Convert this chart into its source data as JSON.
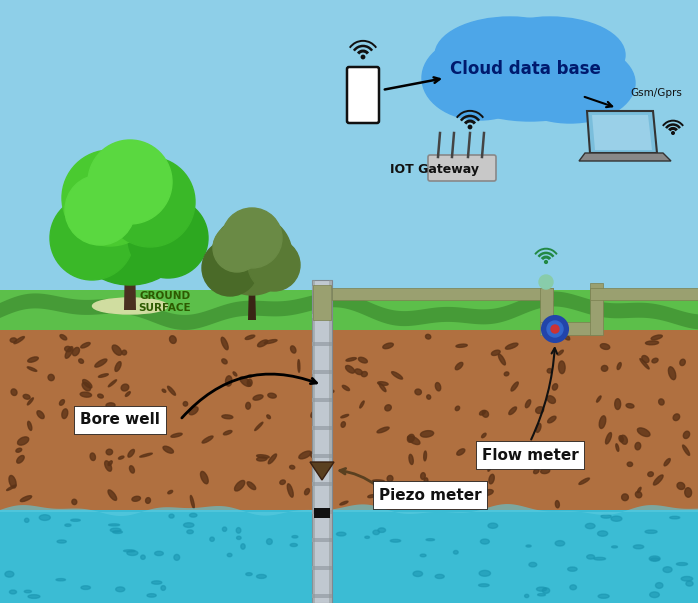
{
  "labels": {
    "cloud": "Cloud data base",
    "gsm": "Gsm/Gprs",
    "iot": "IOT Gateway",
    "ground": "GROUND\nSURFACE",
    "bore": "Bore well",
    "flow": "Flow meter",
    "piezo": "Piezo meter"
  },
  "sky_color": "#8ECFE8",
  "grass_color": "#5CBF4A",
  "dark_grass": "#3d8c30",
  "soil_color": "#B07040",
  "soil_dark": "#5C3317",
  "water_color": "#3BBCD4",
  "water_dark": "#1A95B0",
  "cloud_color": "#4DA6E8",
  "pipe_color": "#9AA070",
  "pipe_dark": "#7a8050",
  "well_color": "#C0C8D0",
  "well_dark": "#909098",
  "label_bg": "#FFFFFF",
  "label_border": "#000000"
}
